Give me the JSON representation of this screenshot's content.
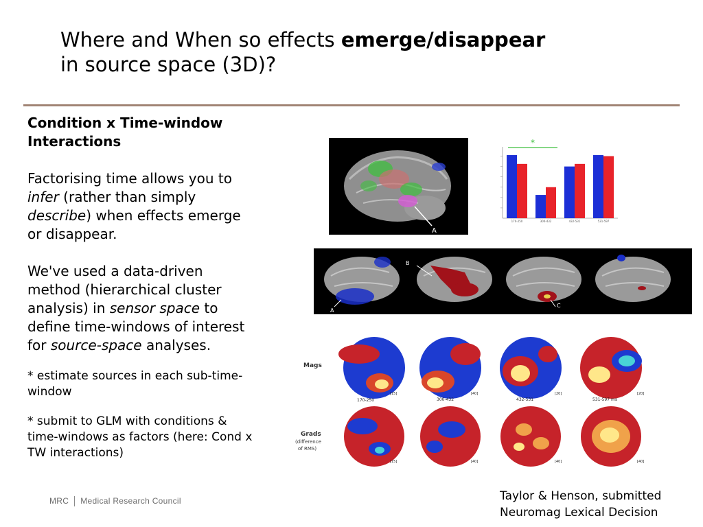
{
  "title": {
    "line1_normal": "Where and When so effects ",
    "line1_bold": "emerge/disappear",
    "line2": "in source space (3D)?"
  },
  "body": {
    "heading": "Condition x Time-window Interactions",
    "p1_a": "Factorising time allows you to ",
    "p1_infer": "infer",
    "p1_b": " (rather than simply ",
    "p1_describe": "describe",
    "p1_c": ") when effects emerge or disappear.",
    "p2_a": "We've used a data-driven method (hierarchical cluster analysis) in ",
    "p2_sensor": "sensor space",
    "p2_b": " to define time-windows of interest for ",
    "p2_source": "source-space",
    "p2_c": " analyses.",
    "bullet1": "* estimate sources in each sub-time-window",
    "bullet2": "* submit to GLM with conditions & time-windows as factors (here: Cond x TW interactions)"
  },
  "logo": {
    "mrc": "MRC",
    "name": "Medical Research Council"
  },
  "citation": {
    "line1": "Taylor & Henson, submitted",
    "line2": "Neuromag Lexical Decision"
  },
  "figure_labels": {
    "brain_label_a": "A",
    "row_brain_label_a": "A",
    "row_brain_label_b": "B",
    "row_brain_label_c": "C",
    "mags": "Mags",
    "grads": "Grads",
    "grads_sub1": "(difference",
    "grads_sub2": "of RMS)",
    "tw1": "170-250",
    "tw2": "300-432",
    "tw3": "432-531",
    "tw4": "531-597 ms",
    "bracket_mag1": "[15]",
    "bracket_mag2": "[40]",
    "bracket_mag3": "[20]",
    "bracket_mag4": "[20]",
    "bracket_grad1": "[15]",
    "bracket_grad2": "[40]",
    "bracket_grad3": "[40]",
    "bracket_grad4": "[40]",
    "star": "*"
  },
  "colors": {
    "accent_rule": "#a08474",
    "blue_bar": "#1c2fd6",
    "red_bar": "#e8232a"
  },
  "chart_data": {
    "type": "bar",
    "categories": [
      "170-250",
      "300-432",
      "432-531",
      "531-597"
    ],
    "series": [
      {
        "values": [
          12.2,
          4.5,
          10.0,
          12.2
        ]
      },
      {
        "values": [
          10.5,
          6.0,
          10.5,
          12.0
        ]
      }
    ],
    "ylim": [
      0,
      13
    ],
    "annotation": "*"
  }
}
